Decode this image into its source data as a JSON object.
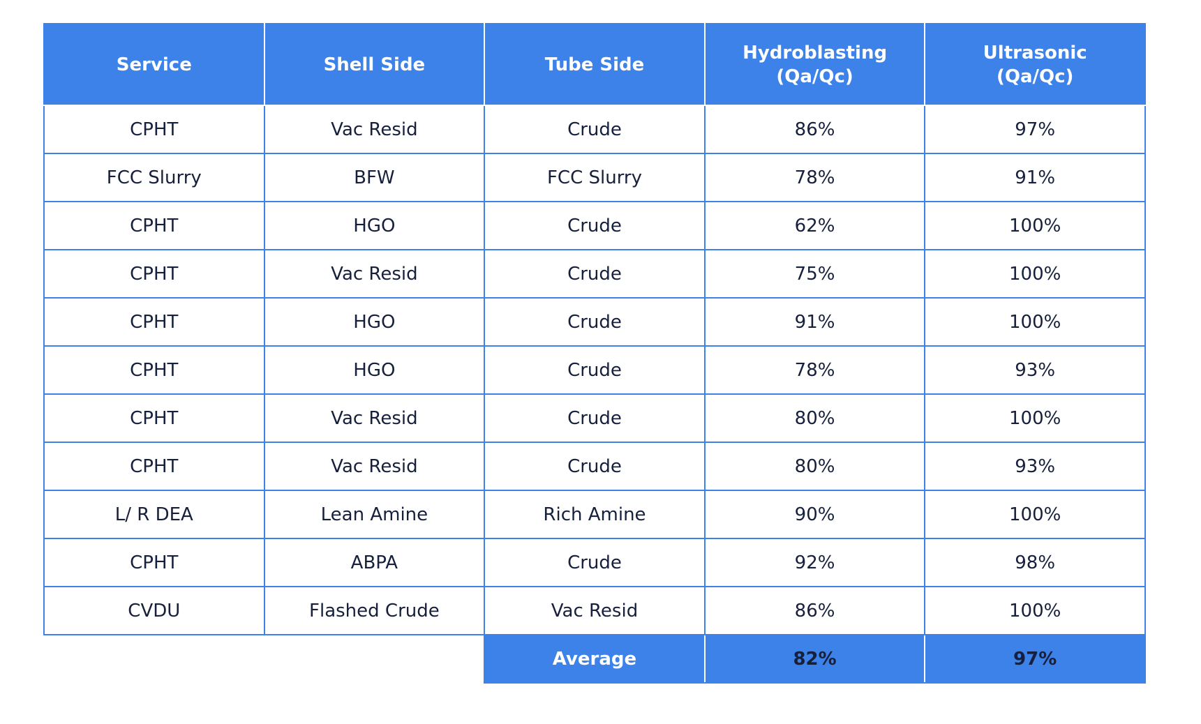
{
  "table": {
    "headers": [
      "Service",
      "Shell Side",
      "Tube Side",
      "Hydroblasting\n(Qa/Qc)",
      "Ultrasonic\n(Qa/Qc)"
    ],
    "header_lines": [
      [
        "Service"
      ],
      [
        "Shell Side"
      ],
      [
        "Tube Side"
      ],
      [
        "Hydroblasting",
        "(Qa/Qc)"
      ],
      [
        "Ultrasonic",
        "(Qa/Qc)"
      ]
    ],
    "rows": [
      [
        "CPHT",
        "Vac Resid",
        "Crude",
        "86%",
        "97%"
      ],
      [
        "FCC Slurry",
        "BFW",
        "FCC Slurry",
        "78%",
        "91%"
      ],
      [
        "CPHT",
        "HGO",
        "Crude",
        "62%",
        "100%"
      ],
      [
        "CPHT",
        "Vac Resid",
        "Crude",
        "75%",
        "100%"
      ],
      [
        "CPHT",
        "HGO",
        "Crude",
        "91%",
        "100%"
      ],
      [
        "CPHT",
        "HGO",
        "Crude",
        "78%",
        "93%"
      ],
      [
        "CPHT",
        "Vac Resid",
        "Crude",
        "80%",
        "100%"
      ],
      [
        "CPHT",
        "Vac Resid",
        "Crude",
        "80%",
        "93%"
      ],
      [
        "L/ R DEA",
        "Lean Amine",
        "Rich Amine",
        "90%",
        "100%"
      ],
      [
        "CPHT",
        "ABPA",
        "Crude",
        "92%",
        "98%"
      ],
      [
        "CVDU",
        "Flashed Crude",
        "Vac Resid",
        "86%",
        "100%"
      ]
    ],
    "average": {
      "label": "Average",
      "hydroblasting": "82%",
      "ultrasonic": "97%"
    }
  },
  "colors": {
    "header_bg": "#3c82e8",
    "header_text": "#ffffff",
    "cell_text": "#16203c",
    "border": "#3c82e8"
  }
}
